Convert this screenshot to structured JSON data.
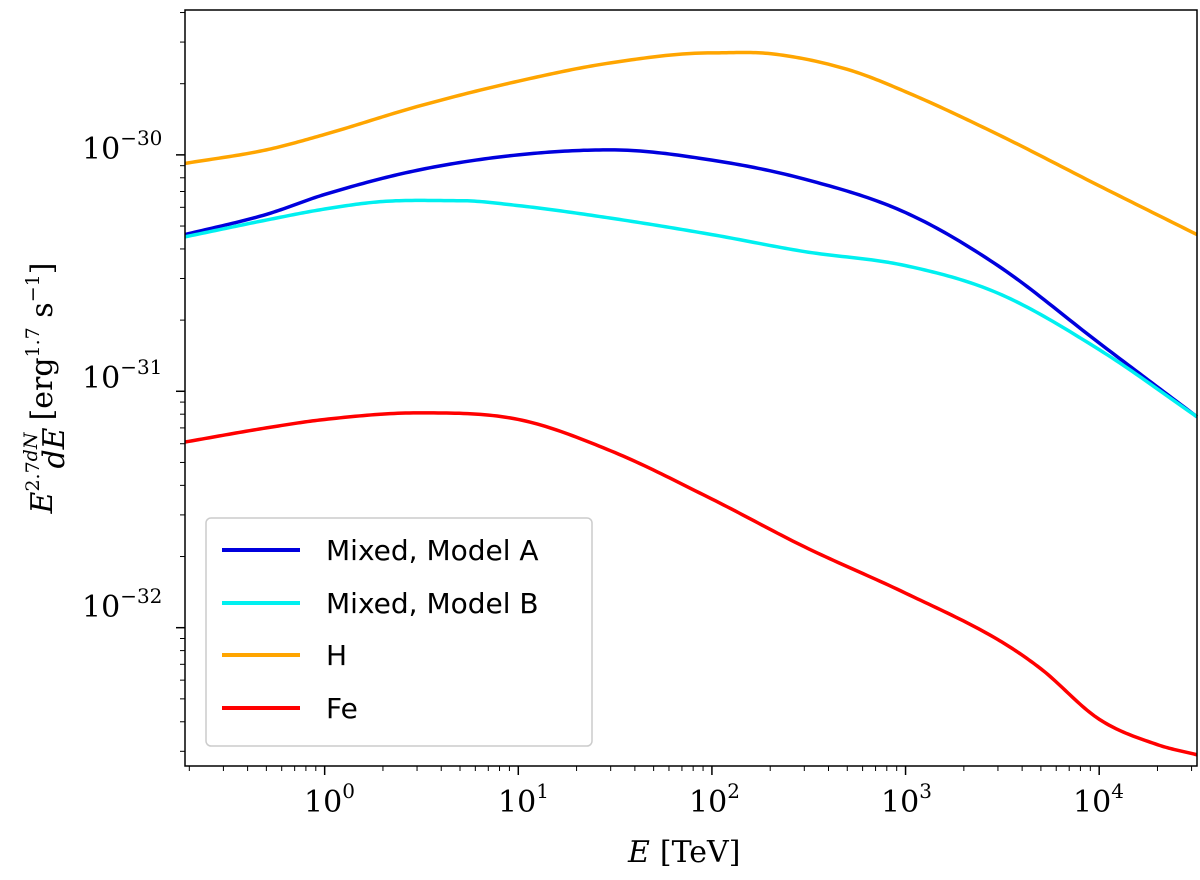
{
  "chart_data": {
    "type": "line",
    "xscale": "log",
    "yscale": "log",
    "xlim": [
      0.19,
      32000
    ],
    "ylim": [
      2.6e-33,
      4.1e-30
    ],
    "xlabel": {
      "base": "E",
      "unit": "[TeV]"
    },
    "ylabel": {
      "base": "E",
      "exponent": "2.7",
      "fraction_numerator": "dN",
      "fraction_denominator": "dE",
      "unit_prefix": "[erg",
      "unit_exponent1": "1.7",
      "unit_mid": " s",
      "unit_exponent2": "−1",
      "unit_suffix": "]"
    },
    "x_ticks": [
      {
        "base": "10",
        "exp": "0",
        "value": 1
      },
      {
        "base": "10",
        "exp": "1",
        "value": 10
      },
      {
        "base": "10",
        "exp": "2",
        "value": 100
      },
      {
        "base": "10",
        "exp": "3",
        "value": 1000
      },
      {
        "base": "10",
        "exp": "4",
        "value": 10000
      }
    ],
    "y_ticks": [
      {
        "base": "10",
        "exp": "−30",
        "value": 1e-30
      },
      {
        "base": "10",
        "exp": "−31",
        "value": 1e-31
      },
      {
        "base": "10",
        "exp": "−32",
        "value": 1e-32
      }
    ],
    "legend_position": "lower-left",
    "series": [
      {
        "name": "Mixed, Model A",
        "color": "#0000dd",
        "x": [
          0.19,
          0.5,
          1,
          3,
          10,
          30,
          100,
          300,
          1000,
          3000,
          10000,
          32000
        ],
        "y": [
          4.6e-31,
          5.6e-31,
          6.8e-31,
          8.6e-31,
          1e-30,
          1.05e-30,
          9.5e-31,
          7.9e-31,
          5.7e-31,
          3.4e-31,
          1.6e-31,
          7.8e-32
        ]
      },
      {
        "name": "Mixed, Model B",
        "color": "#00f0f0",
        "x": [
          0.19,
          0.5,
          1,
          2,
          5,
          10,
          30,
          100,
          300,
          1000,
          3000,
          10000,
          32000
        ],
        "y": [
          4.5e-31,
          5.3e-31,
          5.9e-31,
          6.35e-31,
          6.4e-31,
          6.1e-31,
          5.4e-31,
          4.6e-31,
          3.9e-31,
          3.4e-31,
          2.6e-31,
          1.5e-31,
          7.8e-32
        ]
      },
      {
        "name": "H",
        "color": "#ffa500",
        "x": [
          0.19,
          0.5,
          1,
          3,
          10,
          30,
          100,
          200,
          500,
          1000,
          3000,
          10000,
          32000
        ],
        "y": [
          9.2e-31,
          1.05e-30,
          1.22e-30,
          1.6e-30,
          2.05e-30,
          2.45e-30,
          2.7e-30,
          2.68e-30,
          2.3e-30,
          1.85e-30,
          1.22e-30,
          7.4e-31,
          4.6e-31
        ]
      },
      {
        "name": "Fe",
        "color": "#ff0000",
        "x": [
          0.19,
          0.5,
          1,
          3,
          10,
          30,
          100,
          300,
          1000,
          3000,
          5000,
          10000,
          20000,
          32000
        ],
        "y": [
          6.1e-32,
          7e-32,
          7.6e-32,
          8.1e-32,
          7.6e-32,
          5.6e-32,
          3.5e-32,
          2.2e-32,
          1.4e-32,
          8.9e-33,
          6.7e-33,
          4.1e-33,
          3.2e-33,
          2.9e-33
        ]
      }
    ]
  }
}
